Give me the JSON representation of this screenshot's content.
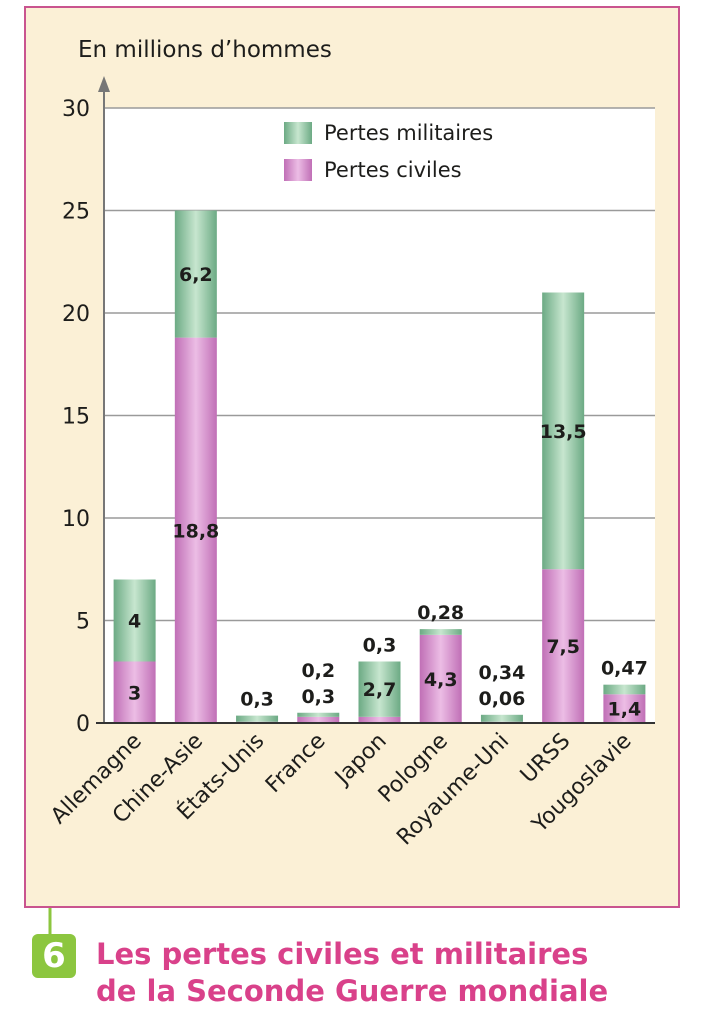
{
  "chart_data": {
    "type": "bar",
    "stacked": true,
    "y_unit_label": "En millions  d’hommes",
    "ylim": [
      0,
      30
    ],
    "yticks": [
      0,
      5,
      10,
      15,
      20,
      25,
      30
    ],
    "grid": true,
    "legend_position": "top-center",
    "categories": [
      "Allemagne",
      "Chine-Asie",
      "États-Unis",
      "France",
      "Japon",
      "Pologne",
      "Royaume-Uni",
      "URSS",
      "Yougoslavie"
    ],
    "series": [
      {
        "name": "Pertes civiles",
        "color": "#c97fc0",
        "values": [
          3,
          18.8,
          0.06,
          0.3,
          0.3,
          4.3,
          0.06,
          7.5,
          1.4
        ],
        "labels": [
          "3",
          "18,8",
          "",
          "0,3",
          "0,3",
          "4,3",
          "0,06",
          "7,5",
          "1,4"
        ]
      },
      {
        "name": "Pertes militaires",
        "color": "#7fb894",
        "values": [
          4,
          6.2,
          0.3,
          0.2,
          2.7,
          0.28,
          0.34,
          13.5,
          0.47
        ],
        "labels": [
          "4",
          "6,2",
          "0,3",
          "0,2",
          "2,7",
          "0,28",
          "0,34",
          "13,5",
          "0,47"
        ]
      }
    ]
  },
  "figure": {
    "number": "6",
    "caption_line1": "Les pertes civiles et militaires",
    "caption_line2": "de la Seconde Guerre mondiale"
  },
  "colors": {
    "frame_border": "#c9548f",
    "frame_bg": "#fbf0d6",
    "caption": "#d9418a",
    "badge": "#8cc63f"
  }
}
